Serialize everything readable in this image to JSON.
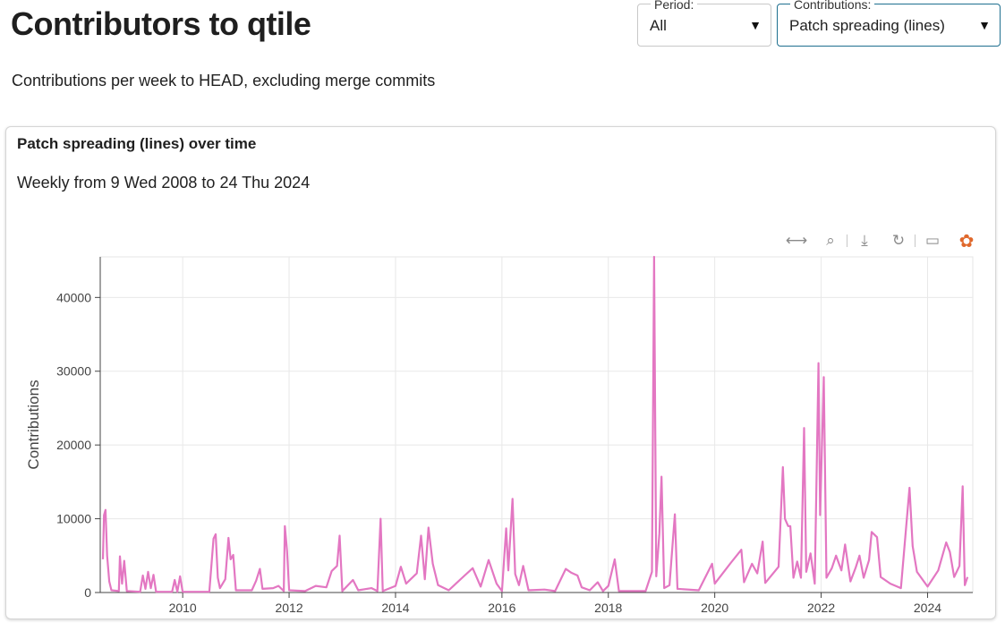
{
  "page": {
    "title": "Contributors to qtile",
    "subtitle": "Contributions per week to HEAD, excluding merge commits"
  },
  "filters": {
    "period": {
      "label": "Period:",
      "value": "All"
    },
    "contributions": {
      "label": "Contributions:",
      "value": "Patch spreading (lines)"
    }
  },
  "card": {
    "title": "Patch spreading (lines) over time",
    "range": "Weekly from 9 Wed 2008 to 24 Thu 2024"
  },
  "toolbar": {
    "tools": [
      {
        "name": "pan-icon",
        "glyph": "⟷",
        "active": true
      },
      {
        "name": "box-zoom-icon",
        "glyph": "⌕",
        "active": false
      },
      {
        "name": "save-icon",
        "glyph": "⤓",
        "active": false
      },
      {
        "name": "reset-icon",
        "glyph": "↻",
        "active": false
      },
      {
        "name": "hover-icon",
        "glyph": "▭",
        "active": true
      },
      {
        "name": "bokeh-logo-icon",
        "glyph": "✿",
        "active": false
      }
    ]
  },
  "chart_data": {
    "type": "line",
    "title": "",
    "xlabel": "",
    "ylabel": "Contributions",
    "xlim": [
      2008.45,
      2024.85
    ],
    "ylim": [
      0,
      45500
    ],
    "x_ticks": [
      2010,
      2012,
      2014,
      2016,
      2018,
      2020,
      2022,
      2024
    ],
    "y_ticks": [
      0,
      10000,
      20000,
      30000,
      40000
    ],
    "grid": true,
    "line_color": "#e377c2",
    "series": [
      {
        "name": "",
        "points": [
          [
            2008.5,
            4500
          ],
          [
            2008.52,
            10500
          ],
          [
            2008.55,
            11200
          ],
          [
            2008.58,
            5000
          ],
          [
            2008.62,
            1500
          ],
          [
            2008.66,
            300
          ],
          [
            2008.8,
            200
          ],
          [
            2008.82,
            4900
          ],
          [
            2008.86,
            1200
          ],
          [
            2008.9,
            4300
          ],
          [
            2008.95,
            200
          ],
          [
            2009.2,
            100
          ],
          [
            2009.25,
            2300
          ],
          [
            2009.3,
            500
          ],
          [
            2009.35,
            2800
          ],
          [
            2009.4,
            600
          ],
          [
            2009.45,
            2400
          ],
          [
            2009.5,
            100
          ],
          [
            2009.8,
            100
          ],
          [
            2009.85,
            1700
          ],
          [
            2009.9,
            100
          ],
          [
            2009.95,
            2200
          ],
          [
            2010.0,
            100
          ],
          [
            2010.5,
            100
          ],
          [
            2010.58,
            7300
          ],
          [
            2010.62,
            7900
          ],
          [
            2010.66,
            2000
          ],
          [
            2010.7,
            600
          ],
          [
            2010.8,
            1800
          ],
          [
            2010.86,
            7400
          ],
          [
            2010.9,
            4500
          ],
          [
            2010.95,
            5100
          ],
          [
            2011.0,
            300
          ],
          [
            2011.3,
            300
          ],
          [
            2011.38,
            1600
          ],
          [
            2011.45,
            3200
          ],
          [
            2011.5,
            500
          ],
          [
            2011.7,
            600
          ],
          [
            2011.8,
            900
          ],
          [
            2011.9,
            200
          ],
          [
            2011.92,
            9000
          ],
          [
            2011.96,
            5700
          ],
          [
            2012.0,
            300
          ],
          [
            2012.3,
            200
          ],
          [
            2012.5,
            900
          ],
          [
            2012.7,
            700
          ],
          [
            2012.8,
            2900
          ],
          [
            2012.9,
            3600
          ],
          [
            2012.95,
            7700
          ],
          [
            2013.0,
            200
          ],
          [
            2013.2,
            1700
          ],
          [
            2013.3,
            300
          ],
          [
            2013.55,
            600
          ],
          [
            2013.66,
            200
          ],
          [
            2013.72,
            10000
          ],
          [
            2013.76,
            200
          ],
          [
            2014.0,
            900
          ],
          [
            2014.1,
            3500
          ],
          [
            2014.2,
            1200
          ],
          [
            2014.4,
            2600
          ],
          [
            2014.48,
            7700
          ],
          [
            2014.55,
            1800
          ],
          [
            2014.62,
            8800
          ],
          [
            2014.7,
            3900
          ],
          [
            2014.8,
            1000
          ],
          [
            2015.0,
            300
          ],
          [
            2015.3,
            2300
          ],
          [
            2015.45,
            3300
          ],
          [
            2015.6,
            800
          ],
          [
            2015.75,
            4400
          ],
          [
            2015.9,
            1200
          ],
          [
            2016.0,
            200
          ],
          [
            2016.08,
            8700
          ],
          [
            2016.12,
            3000
          ],
          [
            2016.2,
            12700
          ],
          [
            2016.25,
            2500
          ],
          [
            2016.32,
            1000
          ],
          [
            2016.4,
            3600
          ],
          [
            2016.5,
            300
          ],
          [
            2016.8,
            400
          ],
          [
            2017.0,
            200
          ],
          [
            2017.2,
            3200
          ],
          [
            2017.3,
            2700
          ],
          [
            2017.42,
            2300
          ],
          [
            2017.5,
            700
          ],
          [
            2017.65,
            300
          ],
          [
            2017.8,
            1400
          ],
          [
            2017.9,
            200
          ],
          [
            2018.0,
            900
          ],
          [
            2018.12,
            4500
          ],
          [
            2018.2,
            200
          ],
          [
            2018.7,
            200
          ],
          [
            2018.82,
            2800
          ],
          [
            2018.86,
            45500
          ],
          [
            2018.9,
            2200
          ],
          [
            2018.96,
            8000
          ],
          [
            2019.0,
            15700
          ],
          [
            2019.05,
            600
          ],
          [
            2019.15,
            1000
          ],
          [
            2019.25,
            10600
          ],
          [
            2019.3,
            500
          ],
          [
            2019.7,
            300
          ],
          [
            2019.95,
            3900
          ],
          [
            2020.0,
            1200
          ],
          [
            2020.3,
            4000
          ],
          [
            2020.5,
            5800
          ],
          [
            2020.55,
            1400
          ],
          [
            2020.7,
            3900
          ],
          [
            2020.8,
            2600
          ],
          [
            2020.9,
            6900
          ],
          [
            2020.95,
            1300
          ],
          [
            2021.2,
            3500
          ],
          [
            2021.28,
            17000
          ],
          [
            2021.32,
            10000
          ],
          [
            2021.38,
            9000
          ],
          [
            2021.42,
            9000
          ],
          [
            2021.48,
            2000
          ],
          [
            2021.55,
            4200
          ],
          [
            2021.62,
            2000
          ],
          [
            2021.68,
            22300
          ],
          [
            2021.72,
            2800
          ],
          [
            2021.8,
            5300
          ],
          [
            2021.88,
            1200
          ],
          [
            2021.95,
            31100
          ],
          [
            2021.98,
            10500
          ],
          [
            2022.05,
            29200
          ],
          [
            2022.1,
            2000
          ],
          [
            2022.2,
            3300
          ],
          [
            2022.28,
            5000
          ],
          [
            2022.38,
            3000
          ],
          [
            2022.45,
            6500
          ],
          [
            2022.55,
            1500
          ],
          [
            2022.65,
            3400
          ],
          [
            2022.72,
            5000
          ],
          [
            2022.8,
            2000
          ],
          [
            2022.9,
            4400
          ],
          [
            2022.95,
            8200
          ],
          [
            2023.05,
            7500
          ],
          [
            2023.12,
            2100
          ],
          [
            2023.3,
            1200
          ],
          [
            2023.5,
            600
          ],
          [
            2023.66,
            14200
          ],
          [
            2023.72,
            6300
          ],
          [
            2023.8,
            2800
          ],
          [
            2024.0,
            800
          ],
          [
            2024.2,
            3000
          ],
          [
            2024.35,
            6800
          ],
          [
            2024.42,
            5500
          ],
          [
            2024.5,
            2100
          ],
          [
            2024.6,
            3600
          ],
          [
            2024.66,
            14400
          ],
          [
            2024.7,
            1000
          ],
          [
            2024.75,
            2100
          ]
        ]
      }
    ]
  }
}
